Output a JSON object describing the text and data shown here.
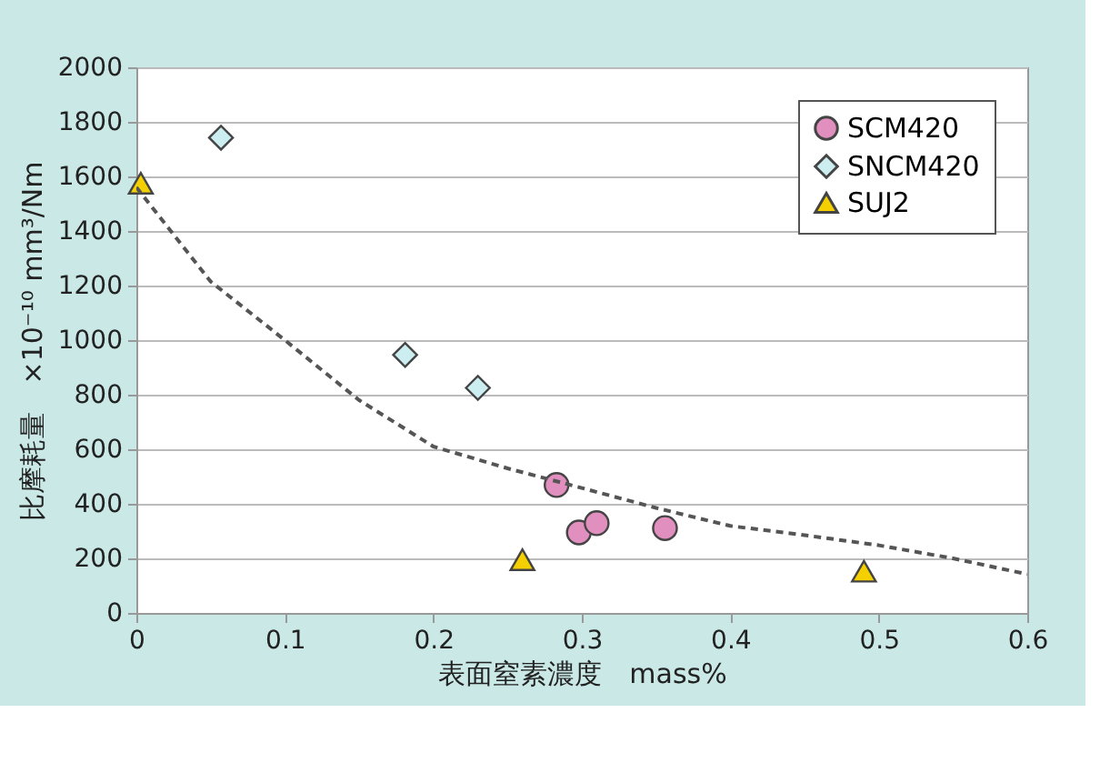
{
  "chart_data": {
    "type": "scatter",
    "xlabel": "表面窒素濃度　mass%",
    "ylabel": "比摩耗量　×10⁻¹⁰ mm³/Nm",
    "xlim": [
      0,
      0.6
    ],
    "xticks": [
      0,
      0.1,
      0.2,
      0.3,
      0.4,
      0.5,
      0.6
    ],
    "ylim": [
      0,
      2000
    ],
    "yticks": [
      0,
      200,
      400,
      600,
      800,
      1000,
      1200,
      1400,
      1600,
      1800,
      2000
    ],
    "grid": "y",
    "legend": "top right",
    "series": [
      {
        "name": "SCM420",
        "color": "#e08fbf",
        "marker": "circle",
        "x": [
          0.283,
          0.298,
          0.31,
          0.356
        ],
        "values": [
          469,
          295,
          329,
          311
        ]
      },
      {
        "name": "SNCM420",
        "color": "#cdeef0",
        "marker": "diamond",
        "x": [
          0.057,
          0.181,
          0.23
        ],
        "values": [
          1742,
          946,
          825
        ]
      },
      {
        "name": "SUJ2",
        "color": "#f5d000",
        "marker": "triangle",
        "x": [
          0.003,
          0.26,
          0.49
        ],
        "values": [
          1575,
          195,
          153
        ]
      },
      {
        "type": "line",
        "color": "#555555",
        "line_style": "dashed",
        "x": [
          0,
          0.05,
          0.1,
          0.15,
          0.2,
          0.25,
          0.3,
          0.35,
          0.4,
          0.45,
          0.5,
          0.55,
          0.6
        ],
        "values": [
          1560,
          1215,
          1000,
          780,
          610,
          530,
          458,
          385,
          319,
          285,
          248,
          200,
          142
        ]
      }
    ]
  }
}
